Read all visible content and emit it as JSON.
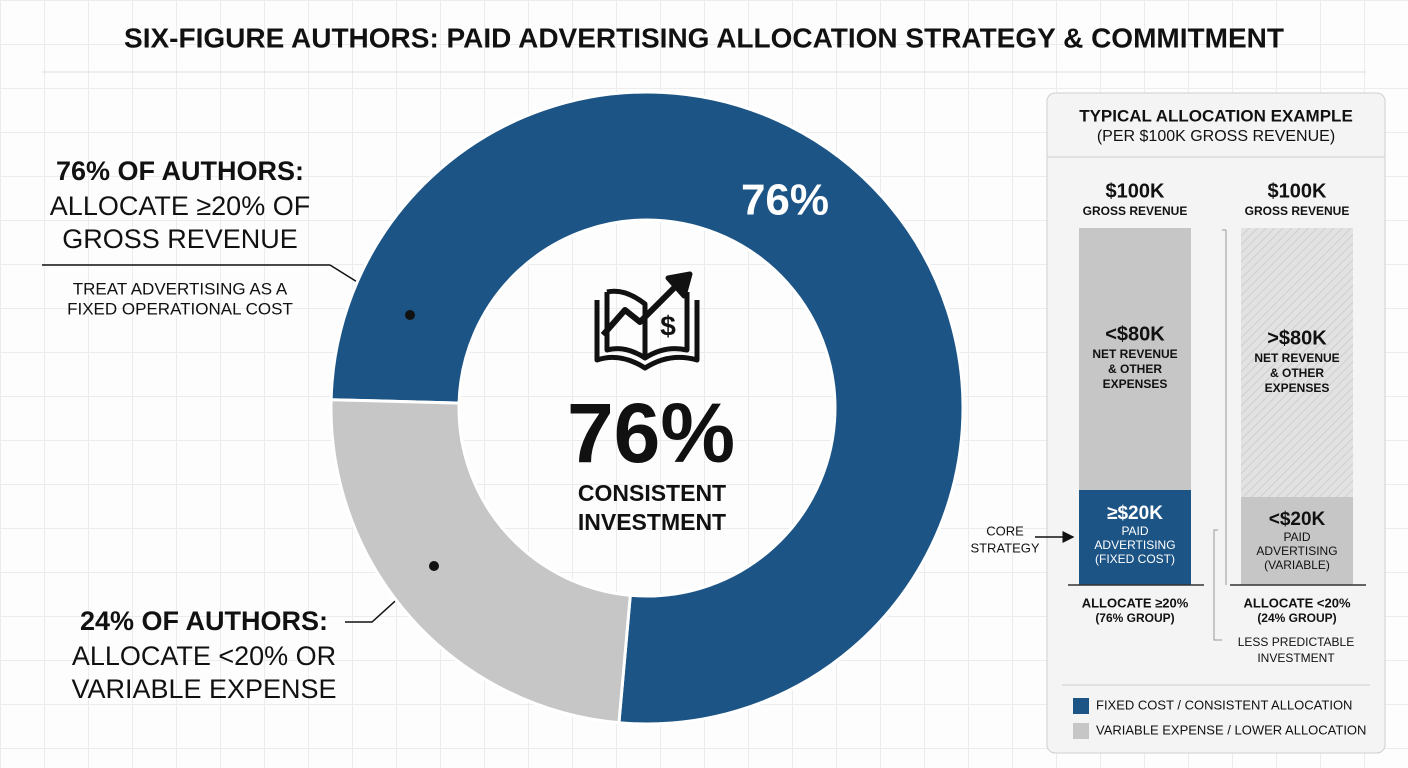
{
  "chart_data": {
    "type": "donut",
    "title": "SIX-FIGURE AUTHORS: PAID ADVERTISING ALLOCATION STRATEGY & COMMITMENT",
    "values": [
      76,
      24
    ],
    "colors": [
      "#1c5485",
      "#c6c6c6"
    ],
    "arc_label": "76%",
    "center_value": "76%",
    "center_lines": [
      "CONSISTENT",
      "INVESTMENT"
    ],
    "callouts": [
      {
        "heading": "76% OF AUTHORS:",
        "lines": [
          "ALLOCATE ≥20% OF",
          "GROSS REVENUE"
        ],
        "note": [
          "TREAT ADVERTISING AS A",
          "FIXED OPERATIONAL COST"
        ]
      },
      {
        "heading": "24% OF AUTHORS:",
        "lines": [
          "ALLOCATE <20% OR",
          "VARIABLE EXPENSE"
        ]
      }
    ]
  },
  "panel": {
    "title": "TYPICAL ALLOCATION EXAMPLE",
    "subtitle": "(PER $100K GROSS REVENUE)",
    "bars": [
      {
        "top_value": "$100K",
        "top_label": "GROSS REVENUE",
        "upper_value": "<$80K",
        "upper_lines": [
          "NET REVENUE",
          "& OTHER",
          "EXPENSES"
        ],
        "lower_value": "≥$20K",
        "lower_lines": [
          "PAID",
          "ADVERTISING",
          "(FIXED COST)"
        ],
        "caption": "ALLOCATE ≥20%",
        "caption_sub": "(76% GROUP)"
      },
      {
        "top_value": "$100K",
        "top_label": "GROSS REVENUE",
        "upper_value": ">$80K",
        "upper_lines": [
          "NET REVENUE",
          "& OTHER",
          "EXPENSES"
        ],
        "lower_value": "<$20K",
        "lower_lines": [
          "PAID",
          "ADVERTISING",
          "(VARIABLE)"
        ],
        "caption": "ALLOCATE <20%",
        "caption_sub": "(24% GROUP)"
      }
    ],
    "core_label": [
      "CORE",
      "STRATEGY"
    ],
    "side_note": [
      "LESS PREDICTABLE",
      "INVESTMENT"
    ],
    "legend": [
      "FIXED COST / CONSISTENT ALLOCATION",
      "VARIABLE EXPENSE / LOWER ALLOCATION"
    ]
  }
}
